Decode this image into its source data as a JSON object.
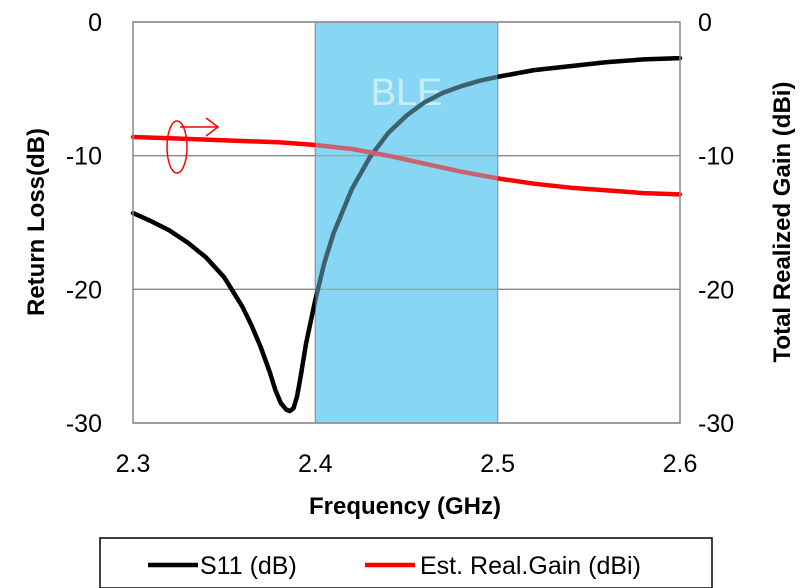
{
  "chart_data": {
    "type": "line",
    "xlabel": "Frequency (GHz)",
    "ylabel": "Return Loss(dB)",
    "y2label": "Total Realized Gain (dBi)",
    "xlim": [
      2.3,
      2.6
    ],
    "ylim": [
      -30,
      0
    ],
    "y2lim": [
      -30,
      0
    ],
    "x_ticks": [
      "2.3",
      "2.4",
      "2.5",
      "2.6"
    ],
    "y_ticks": [
      "0",
      "-10",
      "-20",
      "-30"
    ],
    "y2_ticks": [
      "0",
      "-10",
      "-20",
      "-30"
    ],
    "grid": "horizontal",
    "legend_position": "bottom",
    "band": {
      "label": "BLE",
      "x_start": 2.4,
      "x_end": 2.5,
      "color": "#87d8f5"
    },
    "series": [
      {
        "name": "S11 (dB)",
        "axis": "left",
        "color": "#000000",
        "x": [
          2.3,
          2.31,
          2.32,
          2.33,
          2.34,
          2.35,
          2.36,
          2.365,
          2.37,
          2.375,
          2.378,
          2.381,
          2.384,
          2.386,
          2.388,
          2.39,
          2.392,
          2.395,
          2.4,
          2.405,
          2.41,
          2.42,
          2.43,
          2.44,
          2.45,
          2.46,
          2.47,
          2.48,
          2.49,
          2.5,
          2.52,
          2.54,
          2.56,
          2.58,
          2.6
        ],
        "values": [
          -14.3,
          -14.9,
          -15.6,
          -16.5,
          -17.6,
          -19.1,
          -21.3,
          -22.7,
          -24.3,
          -26.2,
          -27.5,
          -28.5,
          -29.0,
          -29.1,
          -28.9,
          -28.0,
          -26.5,
          -24.0,
          -20.8,
          -18.0,
          -15.8,
          -12.5,
          -10.1,
          -8.3,
          -7.0,
          -6.0,
          -5.3,
          -4.8,
          -4.4,
          -4.1,
          -3.6,
          -3.3,
          -3.0,
          -2.8,
          -2.7
        ]
      },
      {
        "name": "Est. Real.Gain (dBi)",
        "axis": "right",
        "color": "#ff0000",
        "x": [
          2.3,
          2.32,
          2.34,
          2.36,
          2.38,
          2.4,
          2.42,
          2.44,
          2.46,
          2.48,
          2.5,
          2.52,
          2.54,
          2.56,
          2.58,
          2.6
        ],
        "values": [
          -8.6,
          -8.7,
          -8.8,
          -8.9,
          -9.0,
          -9.2,
          -9.5,
          -10.0,
          -10.6,
          -11.2,
          -11.7,
          -12.1,
          -12.4,
          -12.6,
          -12.8,
          -12.9
        ]
      }
    ]
  }
}
